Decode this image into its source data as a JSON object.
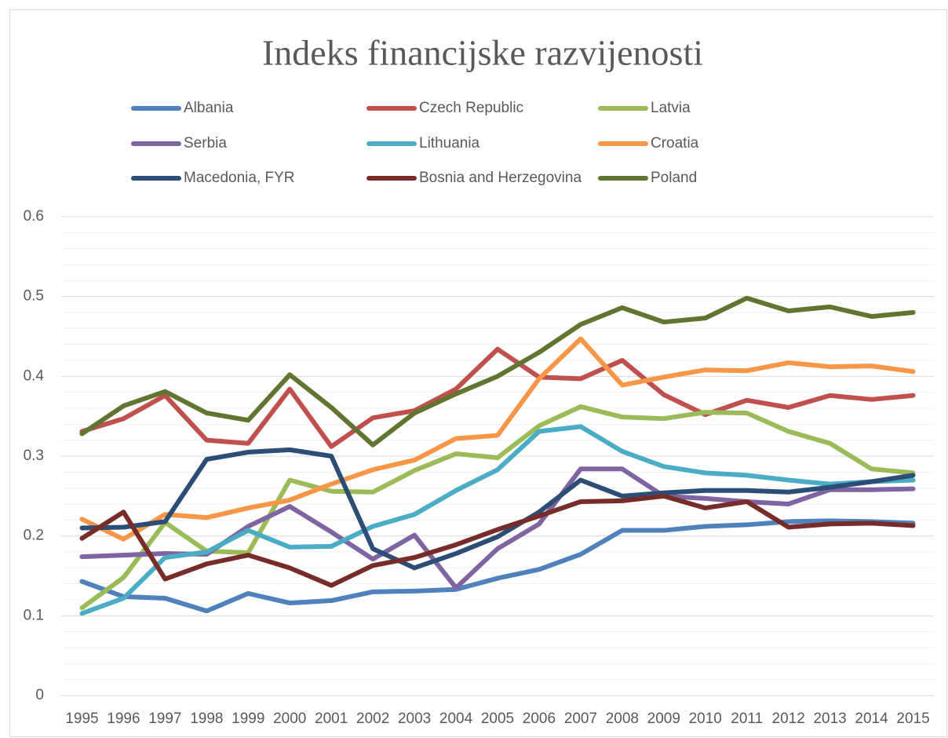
{
  "chart_data": {
    "type": "line",
    "title": "Indeks financijske razvijenosti",
    "categories": [
      "1995",
      "1996",
      "1997",
      "1998",
      "1999",
      "2000",
      "2001",
      "2002",
      "2003",
      "2004",
      "2005",
      "2006",
      "2007",
      "2008",
      "2009",
      "2010",
      "2011",
      "2012",
      "2013",
      "2014",
      "2015"
    ],
    "series": [
      {
        "name": "Albania",
        "color": "#4f81bd",
        "values": [
          0.143,
          0.124,
          0.122,
          0.106,
          0.128,
          0.116,
          0.119,
          0.13,
          0.131,
          0.133,
          0.147,
          0.158,
          0.177,
          0.207,
          0.207,
          0.212,
          0.214,
          0.218,
          0.219,
          0.218,
          0.216
        ]
      },
      {
        "name": "Czech Republic",
        "color": "#c0504d",
        "values": [
          0.331,
          0.347,
          0.376,
          0.32,
          0.316,
          0.384,
          0.312,
          0.348,
          0.357,
          0.384,
          0.434,
          0.399,
          0.397,
          0.42,
          0.377,
          0.352,
          0.37,
          0.361,
          0.376,
          0.371,
          0.376
        ]
      },
      {
        "name": "Latvia",
        "color": "#9bbb59",
        "values": [
          0.11,
          0.148,
          0.217,
          0.181,
          0.179,
          0.27,
          0.256,
          0.255,
          0.282,
          0.303,
          0.298,
          0.338,
          0.362,
          0.349,
          0.347,
          0.355,
          0.354,
          0.331,
          0.316,
          0.284,
          0.279
        ]
      },
      {
        "name": "Serbia",
        "color": "#8064a2",
        "values": [
          0.174,
          0.176,
          0.178,
          0.177,
          0.212,
          0.237,
          0.205,
          0.171,
          0.201,
          0.135,
          0.184,
          0.215,
          0.284,
          0.284,
          0.25,
          0.247,
          0.243,
          0.24,
          0.258,
          0.258,
          0.259
        ]
      },
      {
        "name": "Lithuania",
        "color": "#4bacc6",
        "values": [
          0.103,
          0.122,
          0.173,
          0.18,
          0.207,
          0.186,
          0.187,
          0.212,
          0.227,
          0.257,
          0.283,
          0.331,
          0.337,
          0.306,
          0.287,
          0.279,
          0.276,
          0.27,
          0.265,
          0.268,
          0.27
        ]
      },
      {
        "name": "Croatia",
        "color": "#f79646",
        "values": [
          0.221,
          0.196,
          0.227,
          0.223,
          0.235,
          0.245,
          0.265,
          0.283,
          0.295,
          0.322,
          0.326,
          0.397,
          0.447,
          0.389,
          0.399,
          0.408,
          0.407,
          0.417,
          0.412,
          0.413,
          0.406
        ]
      },
      {
        "name": "Macedonia, FYR",
        "color": "#2c4d75",
        "values": [
          0.21,
          0.211,
          0.218,
          0.296,
          0.305,
          0.308,
          0.3,
          0.184,
          0.16,
          0.178,
          0.199,
          0.23,
          0.27,
          0.25,
          0.254,
          0.257,
          0.257,
          0.255,
          0.261,
          0.268,
          0.276
        ]
      },
      {
        "name": "Bosnia and Herzegovina",
        "color": "#772c2a",
        "values": [
          0.197,
          0.23,
          0.146,
          0.165,
          0.176,
          0.16,
          0.138,
          0.163,
          0.173,
          0.189,
          0.208,
          0.225,
          0.243,
          0.244,
          0.25,
          0.235,
          0.243,
          0.211,
          0.215,
          0.216,
          0.213
        ]
      },
      {
        "name": "Poland",
        "color": "#5f7530",
        "values": [
          0.328,
          0.363,
          0.381,
          0.354,
          0.345,
          0.402,
          0.361,
          0.314,
          0.354,
          0.378,
          0.4,
          0.43,
          0.465,
          0.486,
          0.468,
          0.473,
          0.498,
          0.482,
          0.487,
          0.475,
          0.48
        ]
      }
    ],
    "ylim": [
      0,
      0.6
    ],
    "yticks": [
      0,
      0.1,
      0.2,
      0.3,
      0.4,
      0.5,
      0.6
    ],
    "yminorticks": [
      0.02,
      0.04,
      0.06,
      0.08,
      0.12,
      0.14,
      0.16,
      0.18,
      0.22,
      0.24,
      0.26,
      0.28,
      0.32,
      0.34,
      0.36,
      0.38,
      0.42,
      0.44,
      0.46,
      0.48,
      0.52,
      0.54,
      0.56,
      0.58
    ],
    "grid": true,
    "legend": "top"
  }
}
